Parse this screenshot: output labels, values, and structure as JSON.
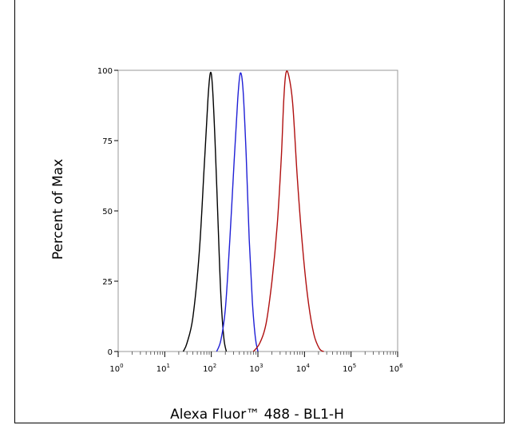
{
  "chart_data": {
    "type": "line",
    "xlabel": "Alexa Fluor™ 488 - BL1-H",
    "ylabel": "Percent of Max",
    "x_scale": "log",
    "xlim": [
      1,
      1000000
    ],
    "ylim": [
      0,
      100
    ],
    "x_ticks": [
      {
        "base": "10",
        "exp": "0"
      },
      {
        "base": "10",
        "exp": "1"
      },
      {
        "base": "10",
        "exp": "2"
      },
      {
        "base": "10",
        "exp": "3"
      },
      {
        "base": "10",
        "exp": "4"
      },
      {
        "base": "10",
        "exp": "5"
      },
      {
        "base": "10",
        "exp": "6"
      }
    ],
    "y_ticks": [
      "0",
      "25",
      "50",
      "75",
      "100"
    ],
    "grid": false,
    "series": [
      {
        "color": "#000000",
        "x": [
          25,
          30,
          40,
          55,
          70,
          85,
          95,
          105,
          120,
          140,
          160,
          185,
          210
        ],
        "y": [
          0,
          3,
          12,
          35,
          65,
          90,
          99,
          95,
          75,
          45,
          20,
          5,
          0
        ]
      },
      {
        "color": "#1f1fd6",
        "x": [
          130,
          160,
          200,
          250,
          310,
          370,
          420,
          480,
          560,
          650,
          760,
          880,
          1000
        ],
        "y": [
          0,
          4,
          15,
          40,
          68,
          90,
          99,
          93,
          70,
          40,
          18,
          5,
          0
        ]
      },
      {
        "color": "#b01010",
        "x": [
          800,
          1100,
          1500,
          2000,
          2600,
          3200,
          3600,
          4000,
          4600,
          5600,
          7000,
          9000,
          12000,
          16000,
          21000,
          26000
        ],
        "y": [
          0,
          3,
          10,
          25,
          45,
          70,
          90,
          99,
          98,
          88,
          62,
          38,
          18,
          6,
          1,
          0
        ]
      }
    ]
  }
}
